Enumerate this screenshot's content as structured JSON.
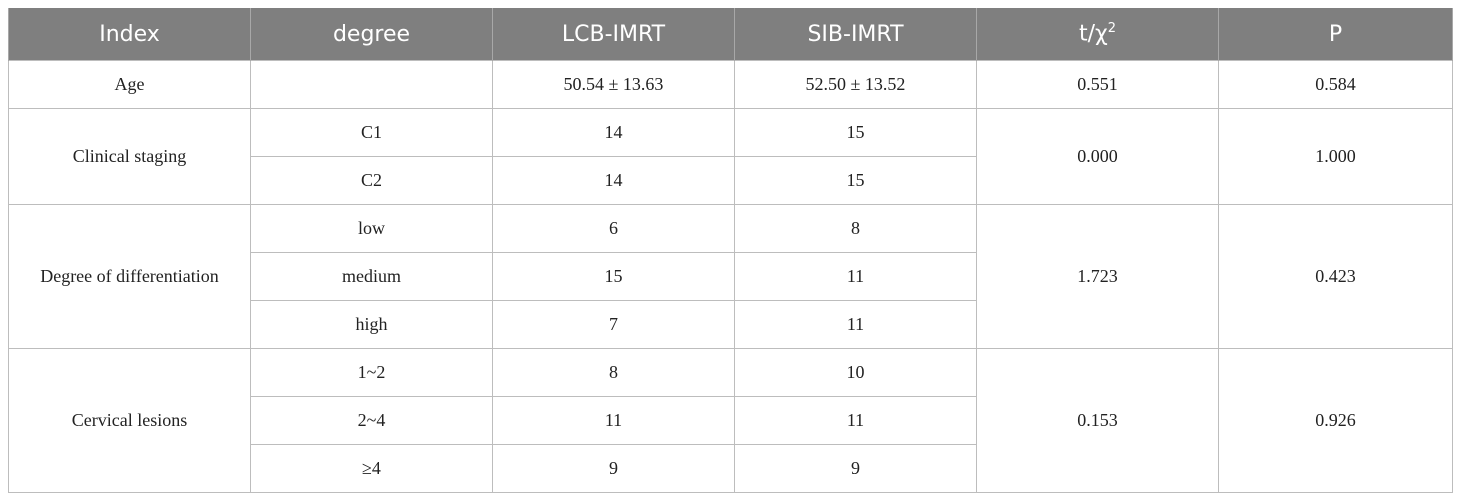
{
  "table": {
    "headers": [
      "Index",
      "degree",
      "LCB-IMRT",
      "SIB-IMRT",
      "t/χ",
      "P"
    ],
    "chi_superscript": "2",
    "groups": [
      {
        "index": "Age",
        "t_chi2": "0.551",
        "p": "0.584",
        "rows": [
          {
            "degree": "",
            "lcb": "50.54 ± 13.63",
            "sib": "52.50 ± 13.52"
          }
        ]
      },
      {
        "index": "Clinical staging",
        "t_chi2": "0.000",
        "p": "1.000",
        "rows": [
          {
            "degree": "C1",
            "lcb": "14",
            "sib": "15"
          },
          {
            "degree": "C2",
            "lcb": "14",
            "sib": "15"
          }
        ]
      },
      {
        "index": "Degree of differentiation",
        "t_chi2": "1.723",
        "p": "0.423",
        "rows": [
          {
            "degree": "low",
            "lcb": "6",
            "sib": "8"
          },
          {
            "degree": "medium",
            "lcb": "15",
            "sib": "11"
          },
          {
            "degree": "high",
            "lcb": "7",
            "sib": "11"
          }
        ]
      },
      {
        "index": "Cervical lesions",
        "t_chi2": "0.153",
        "p": "0.926",
        "rows": [
          {
            "degree": "1~2",
            "lcb": "8",
            "sib": "10"
          },
          {
            "degree": "2~4",
            "lcb": "11",
            "sib": "11"
          },
          {
            "degree": "≥4",
            "lcb": "9",
            "sib": "9"
          }
        ]
      }
    ]
  }
}
